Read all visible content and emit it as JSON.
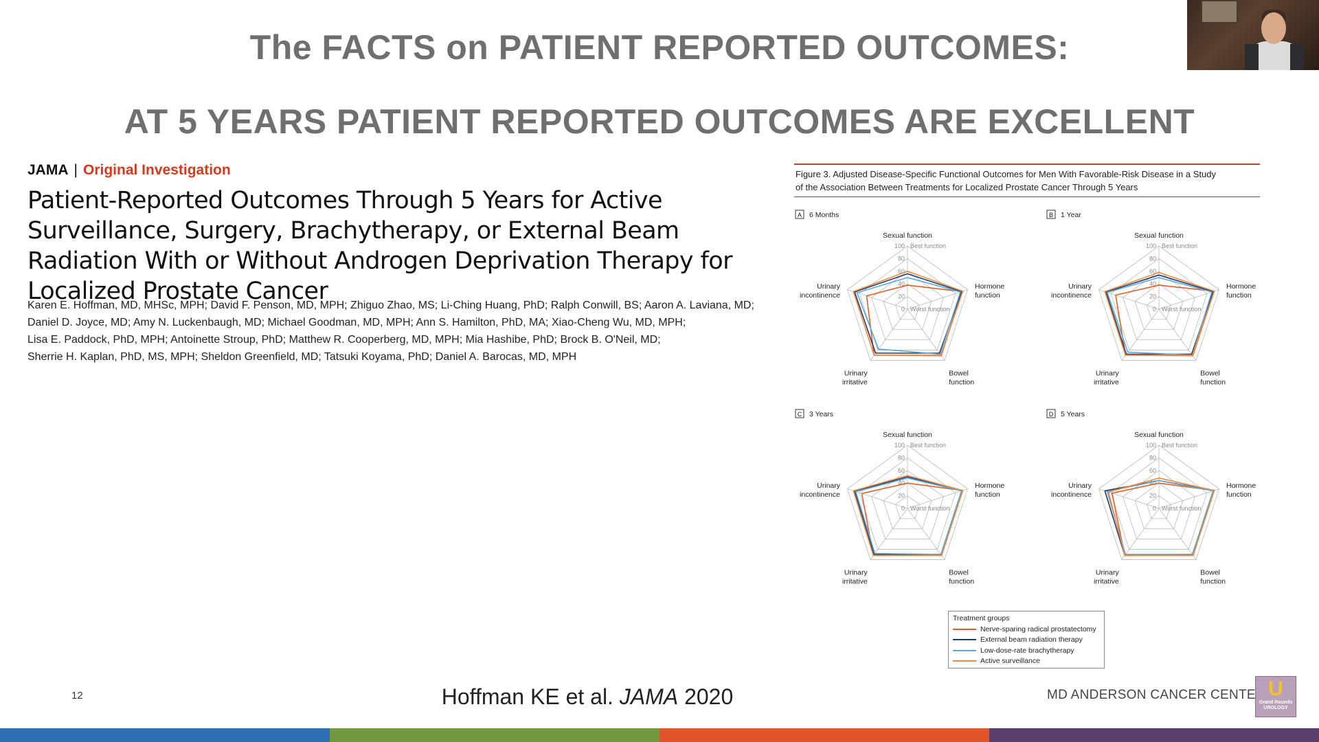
{
  "slide": {
    "title_line1": "The FACTS on PATIENT REPORTED OUTCOMES:",
    "title_line2": "AT 5 YEARS PATIENT REPORTED OUTCOMES ARE EXCELLENT",
    "slide_number": "12",
    "citation_authors": "Hoffman KE et al.",
    "citation_journal": "JAMA",
    "citation_year": "2020",
    "institution": "MD ANDERSON CANCER CENTER",
    "logo_text_line1": "Grand Rounds",
    "logo_text_line2": "UROLOGY",
    "bottom_bar_colors": [
      "#2f6db5",
      "#6f9a3e",
      "#e2542b",
      "#5a3f6e"
    ]
  },
  "article": {
    "journal": "JAMA",
    "separator": "|",
    "article_type": "Original Investigation",
    "title": "Patient-Reported Outcomes Through 5 Years for Active Surveillance, Surgery, Brachytherapy, or External Beam Radiation With or Without Androgen Deprivation Therapy for Localized Prostate Cancer",
    "author_lines": [
      "Karen E. Hoffman, MD, MHSc, MPH; David F. Penson, MD, MPH; Zhiguo Zhao, MS; Li-Ching Huang, PhD; Ralph Conwill, BS; Aaron A. Laviana, MD;",
      "Daniel D. Joyce, MD; Amy N. Luckenbaugh, MD; Michael Goodman, MD, MPH; Ann S. Hamilton, PhD, MA; Xiao-Cheng Wu, MD, MPH;",
      "Lisa E. Paddock, PhD, MPH; Antoinette Stroup, PhD; Matthew R. Cooperberg, MD, MPH; Mia Hashibe, PhD; Brock B. O'Neil, MD;",
      "Sherrie H. Kaplan, PhD, MS, MPH; Sheldon Greenfield, MD; Tatsuki Koyama, PhD; Daniel A. Barocas, MD, MPH"
    ]
  },
  "figure": {
    "caption_line1": "Figure 3. Adjusted Disease-Specific Functional Outcomes for Men With Favorable-Risk Disease in a Study",
    "caption_line2": "of the Association Between Treatments for Localized Prostate Cancer Through 5 Years"
  },
  "chart_data": [
    {
      "type": "radar",
      "panel_letter": "A",
      "panel_label": "6 Months",
      "axes": [
        "Sexual function",
        "Hormone function",
        "Bowel function",
        "Urinary irritative",
        "Urinary incontinence"
      ],
      "scale_ticks": [
        "0",
        "20",
        "40",
        "60",
        "80",
        "100"
      ],
      "scale_max_label": "Best function",
      "scale_min_label": "Worst function",
      "range": [
        0,
        100
      ],
      "series": [
        {
          "name": "Nerve-sparing radical prostatectomy",
          "color": "#d9622b",
          "values": [
            38,
            90,
            91,
            90,
            68
          ]
        },
        {
          "name": "External beam radiation therapy",
          "color": "#1f3a6e",
          "values": [
            56,
            90,
            86,
            86,
            88
          ]
        },
        {
          "name": "Low-dose-rate brachytherapy",
          "color": "#5aa7d8",
          "values": [
            50,
            88,
            88,
            78,
            84
          ]
        },
        {
          "name": "Active surveillance",
          "color": "#f08a3a",
          "values": [
            60,
            92,
            90,
            90,
            90
          ]
        }
      ]
    },
    {
      "type": "radar",
      "panel_letter": "B",
      "panel_label": "1 Year",
      "axes": [
        "Sexual function",
        "Hormone function",
        "Bowel function",
        "Urinary irritative",
        "Urinary incontinence"
      ],
      "scale_ticks": [
        "0",
        "20",
        "40",
        "60",
        "80",
        "100"
      ],
      "scale_max_label": "Best function",
      "scale_min_label": "Worst function",
      "range": [
        0,
        100
      ],
      "series": [
        {
          "name": "Nerve-sparing radical prostatectomy",
          "color": "#d9622b",
          "values": [
            38,
            92,
            91,
            90,
            72
          ]
        },
        {
          "name": "External beam radiation therapy",
          "color": "#1f3a6e",
          "values": [
            54,
            90,
            88,
            88,
            88
          ]
        },
        {
          "name": "Low-dose-rate brachytherapy",
          "color": "#5aa7d8",
          "values": [
            50,
            88,
            90,
            84,
            86
          ]
        },
        {
          "name": "Active surveillance",
          "color": "#f08a3a",
          "values": [
            58,
            92,
            90,
            90,
            90
          ]
        }
      ]
    },
    {
      "type": "radar",
      "panel_letter": "C",
      "panel_label": "3 Years",
      "axes": [
        "Sexual function",
        "Hormone function",
        "Bowel function",
        "Urinary irritative",
        "Urinary incontinence"
      ],
      "scale_ticks": [
        "0",
        "20",
        "40",
        "60",
        "80",
        "100"
      ],
      "scale_max_label": "Best function",
      "scale_min_label": "Worst function",
      "range": [
        0,
        100
      ],
      "series": [
        {
          "name": "Nerve-sparing radical prostatectomy",
          "color": "#d9622b",
          "values": [
            40,
            92,
            91,
            92,
            76
          ]
        },
        {
          "name": "External beam radiation therapy",
          "color": "#1f3a6e",
          "values": [
            50,
            90,
            90,
            90,
            88
          ]
        },
        {
          "name": "Low-dose-rate brachytherapy",
          "color": "#5aa7d8",
          "values": [
            48,
            90,
            90,
            88,
            86
          ]
        },
        {
          "name": "Active surveillance",
          "color": "#f08a3a",
          "values": [
            52,
            92,
            92,
            92,
            90
          ]
        }
      ]
    },
    {
      "type": "radar",
      "panel_letter": "D",
      "panel_label": "5 Years",
      "axes": [
        "Sexual function",
        "Hormone function",
        "Bowel function",
        "Urinary irritative",
        "Urinary incontinence"
      ],
      "scale_ticks": [
        "0",
        "20",
        "40",
        "60",
        "80",
        "100"
      ],
      "scale_max_label": "Best function",
      "scale_min_label": "Worst function",
      "range": [
        0,
        100
      ],
      "series": [
        {
          "name": "Nerve-sparing radical prostatectomy",
          "color": "#d9622b",
          "values": [
            40,
            92,
            92,
            92,
            78
          ]
        },
        {
          "name": "External beam radiation therapy",
          "color": "#1f3a6e",
          "values": [
            44,
            92,
            90,
            92,
            90
          ]
        },
        {
          "name": "Low-dose-rate brachytherapy",
          "color": "#5aa7d8",
          "values": [
            44,
            90,
            90,
            90,
            86
          ]
        },
        {
          "name": "Active surveillance",
          "color": "#f08a3a",
          "values": [
            48,
            92,
            92,
            92,
            84
          ]
        }
      ]
    }
  ],
  "legend": {
    "title": "Treatment groups",
    "items": [
      {
        "label": "Nerve-sparing radical prostatectomy",
        "color": "#d9622b"
      },
      {
        "label": "External beam radiation therapy",
        "color": "#1f3a6e"
      },
      {
        "label": "Low-dose-rate brachytherapy",
        "color": "#5aa7d8"
      },
      {
        "label": "Active surveillance",
        "color": "#f08a3a"
      }
    ]
  }
}
